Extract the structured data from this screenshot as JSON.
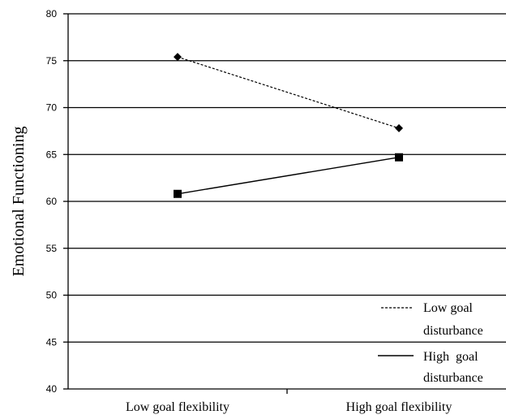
{
  "chart_data": {
    "type": "line",
    "ylabel": "Emotional Functioning",
    "xlabel": "",
    "categories": [
      "Low goal flexibility",
      "High goal flexibility"
    ],
    "ylim": [
      40,
      80
    ],
    "yticks": [
      40,
      45,
      50,
      55,
      60,
      65,
      70,
      75,
      80
    ],
    "grid": true,
    "legend_position": "bottom-right",
    "series": [
      {
        "name_line1": "Low goal",
        "name_line2": "disturbance",
        "name": "Low goal disturbance",
        "values": [
          75.4,
          67.8
        ],
        "line_style": "dashed",
        "marker": "diamond"
      },
      {
        "name_line1": "High  goal",
        "name_line2": "disturbance",
        "name": "High goal disturbance",
        "values": [
          60.8,
          64.7
        ],
        "line_style": "solid",
        "marker": "square"
      }
    ]
  }
}
